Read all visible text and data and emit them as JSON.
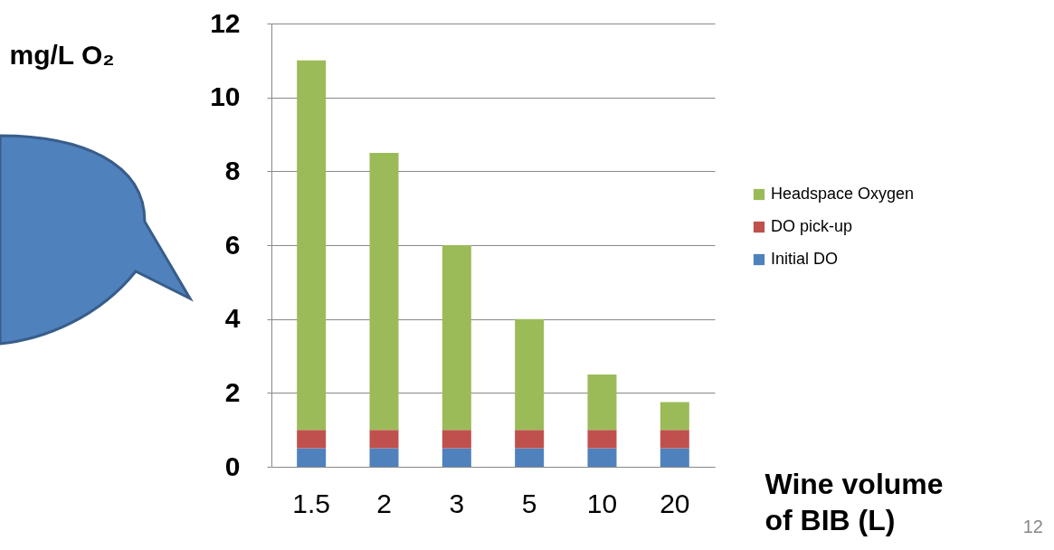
{
  "chart_data": {
    "type": "bar",
    "stacked": true,
    "ylabel": "mg/L O₂",
    "xlabel": "Wine volume of BIB (L)",
    "categories": [
      "1.5",
      "2",
      "3",
      "5",
      "10",
      "20"
    ],
    "series": [
      {
        "name": "Initial DO",
        "color": "#4f81bd",
        "values": [
          0.5,
          0.5,
          0.5,
          0.5,
          0.5,
          0.5
        ]
      },
      {
        "name": "DO pick-up",
        "color": "#c0504d",
        "values": [
          0.5,
          0.5,
          0.5,
          0.5,
          0.5,
          0.5
        ]
      },
      {
        "name": "Headspace Oxygen",
        "color": "#9bbb59",
        "values": [
          10,
          7.5,
          5,
          3,
          1.5,
          0.75
        ]
      }
    ],
    "ylim": [
      0,
      12
    ],
    "yticks": [
      0,
      2,
      4,
      6,
      8,
      10,
      12
    ],
    "grid": "y",
    "legend": "right",
    "annotations": [
      "12"
    ]
  }
}
